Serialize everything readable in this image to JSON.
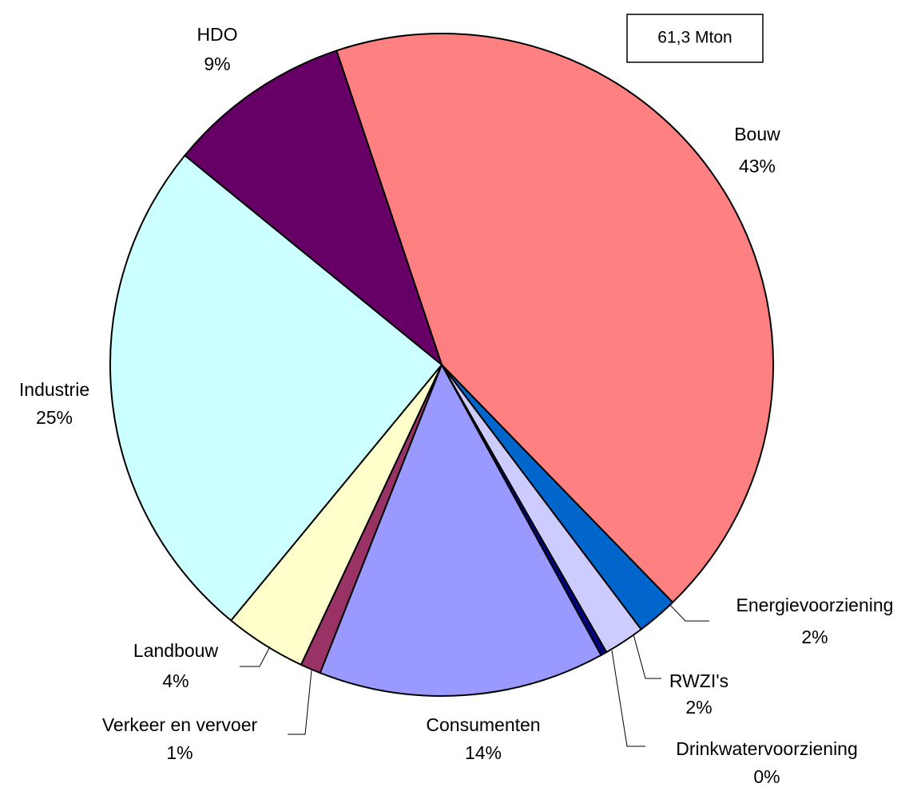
{
  "chart_data": {
    "type": "pie",
    "annotation": "61,3 Mton",
    "categories": [
      "Bouw",
      "Energievoorziening",
      "RWZI's",
      "Drinkwatervoorziening",
      "Consumenten",
      "Verkeer en vervoer",
      "Landbouw",
      "Industrie",
      "HDO"
    ],
    "values": [
      43,
      2,
      2,
      0.3,
      14,
      1,
      4,
      25,
      9
    ],
    "value_labels": [
      "43%",
      "2%",
      "2%",
      "0%",
      "14%",
      "1%",
      "4%",
      "25%",
      "9%"
    ],
    "colors": [
      "#ff8080",
      "#0066cc",
      "#ccccff",
      "#000080",
      "#9999ff",
      "#993366",
      "#ffffcc",
      "#ccffff",
      "#660066"
    ]
  }
}
